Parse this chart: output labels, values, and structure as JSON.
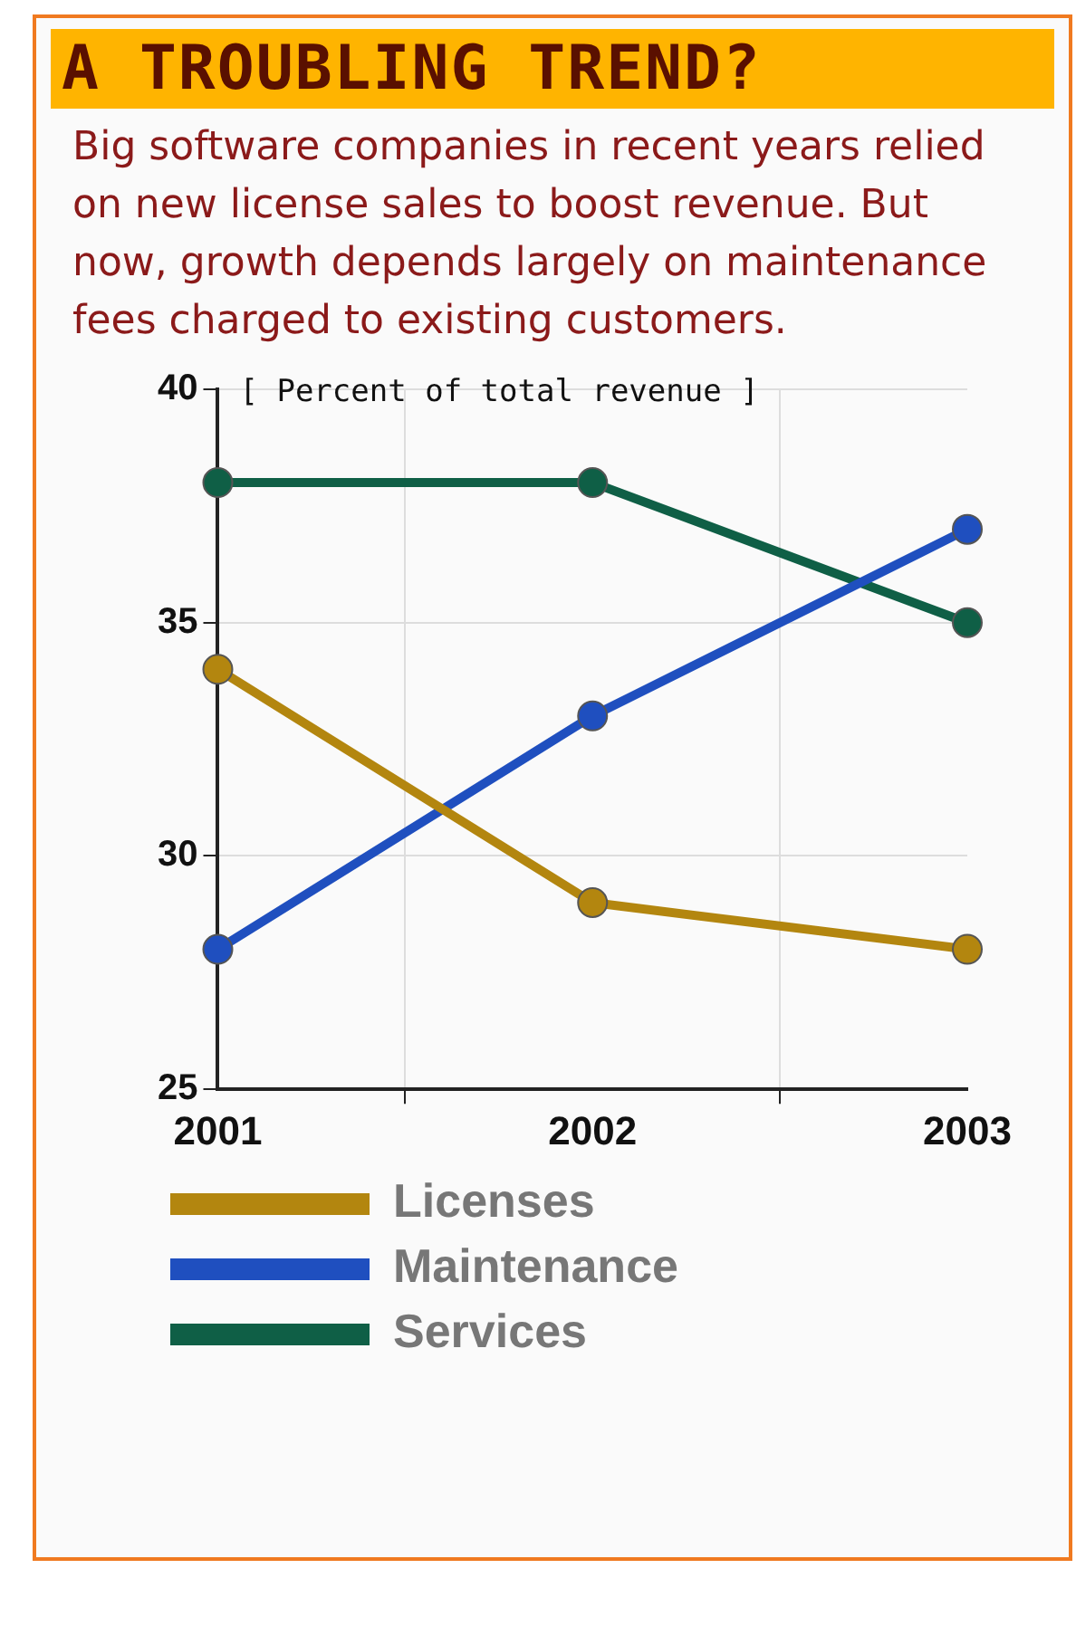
{
  "chart_data": {
    "type": "line",
    "title": "A TROUBLING TREND?",
    "subtitle": "Big software companies in recent years relied on new license sales to boost revenue. But now, growth depends largely on maintenance fees charged to existing customers.",
    "ylabel": "[ Percent of total revenue ]",
    "categories": [
      "2001",
      "2002",
      "2003"
    ],
    "series": [
      {
        "name": "Licenses",
        "color": "#b3860f",
        "values": [
          34,
          29,
          28
        ]
      },
      {
        "name": "Maintenance",
        "color": "#1f4fbf",
        "values": [
          28,
          33,
          37
        ]
      },
      {
        "name": "Services",
        "color": "#0f5f46",
        "values": [
          38,
          38,
          35
        ]
      }
    ],
    "ylim": [
      25,
      40
    ],
    "yticks": [
      25,
      30,
      35,
      40
    ],
    "grid": true,
    "legend": "bottom",
    "marker": "circle",
    "line_style": "solid"
  }
}
